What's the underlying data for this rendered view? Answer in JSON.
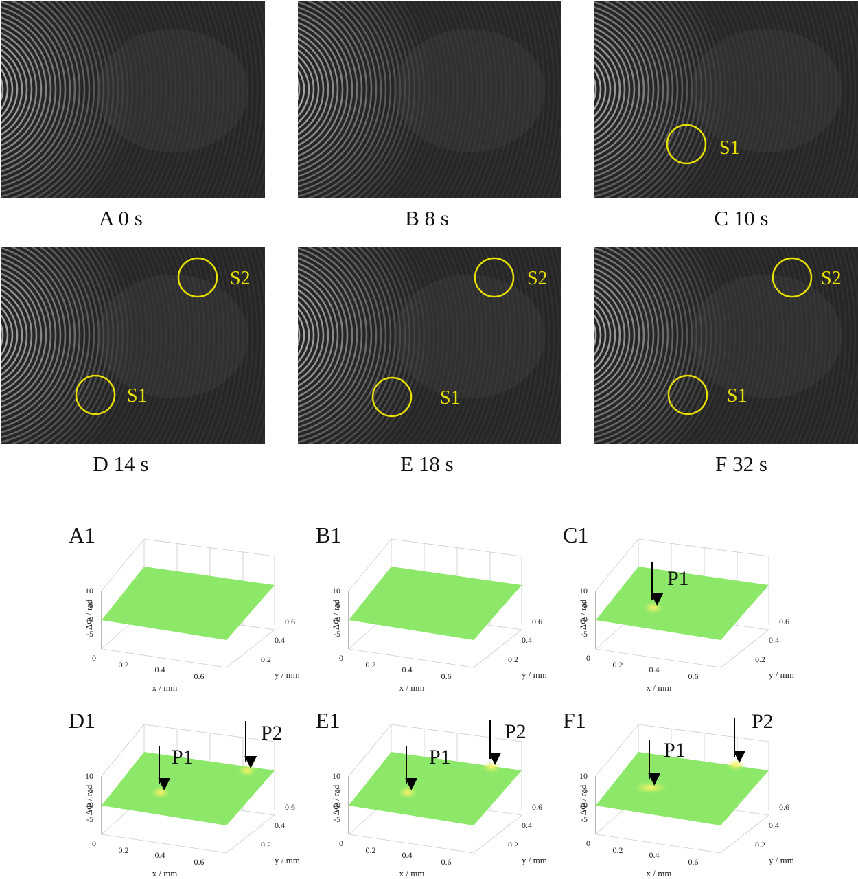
{
  "photos": [
    {
      "label": "A 0 s",
      "markers": []
    },
    {
      "label": "B 8 s",
      "markers": []
    },
    {
      "label": "C 10 s",
      "markers": [
        "S1"
      ]
    },
    {
      "label": "D 14 s",
      "markers": [
        "S2",
        "S1"
      ]
    },
    {
      "label": "E 18 s",
      "markers": [
        "S2",
        "S1"
      ]
    },
    {
      "label": "F 32 s",
      "markers": [
        "S2",
        "S1"
      ]
    }
  ],
  "plots": [
    {
      "label": "A1",
      "z_label": "ΔΦ / rad",
      "x_label": "x / mm",
      "y_label": "y / mm",
      "z_ticks": [
        "10",
        "5",
        "0",
        "-5"
      ],
      "x_ticks": [
        "0",
        "0.2",
        "0.4",
        "0.6"
      ],
      "y_ticks": [
        "0.2",
        "0.4",
        "0.6"
      ],
      "arrows": []
    },
    {
      "label": "B1",
      "z_label": "ΔΦ / rad",
      "x_label": "x / mm",
      "y_label": "y / mm",
      "z_ticks": [
        "10",
        "5",
        "0",
        "-5"
      ],
      "x_ticks": [
        "0",
        "0.2",
        "0.4",
        "0.6"
      ],
      "y_ticks": [
        "0.2",
        "0.4",
        "0.6"
      ],
      "arrows": []
    },
    {
      "label": "C1",
      "z_label": "ΔΦ / rad",
      "x_label": "x / mm",
      "y_label": "y / mm",
      "z_ticks": [
        "10",
        "5",
        "0",
        "-5"
      ],
      "x_ticks": [
        "0",
        "0.2",
        "0.4",
        "0.6"
      ],
      "y_ticks": [
        "0.2",
        "0.4",
        "0.6"
      ],
      "arrows": [
        "P1"
      ]
    },
    {
      "label": "D1",
      "z_label": "ΔΦ / rad",
      "x_label": "x / mm",
      "y_label": "y / mm",
      "z_ticks": [
        "10",
        "5",
        "0",
        "-5"
      ],
      "x_ticks": [
        "0",
        "0.2",
        "0.4",
        "0.6"
      ],
      "y_ticks": [
        "0.2",
        "0.4",
        "0.6"
      ],
      "arrows": [
        "P1",
        "P2"
      ]
    },
    {
      "label": "E1",
      "z_label": "ΔΦ / rad",
      "x_label": "x / mm",
      "y_label": "y / mm",
      "z_ticks": [
        "10",
        "5",
        "0",
        "-5"
      ],
      "x_ticks": [
        "0",
        "0.2",
        "0.4",
        "0.6"
      ],
      "y_ticks": [
        "0.2",
        "0.4",
        "0.6"
      ],
      "arrows": [
        "P1",
        "P2"
      ]
    },
    {
      "label": "F1",
      "z_label": "ΔΦ / rad",
      "x_label": "x / mm",
      "y_label": "y / mm",
      "z_ticks": [
        "10",
        "5",
        "0",
        "-5"
      ],
      "x_ticks": [
        "0",
        "0.2",
        "0.4",
        "0.6"
      ],
      "y_ticks": [
        "0.2",
        "0.4",
        "0.6"
      ],
      "arrows": [
        "P1",
        "P2"
      ]
    }
  ]
}
